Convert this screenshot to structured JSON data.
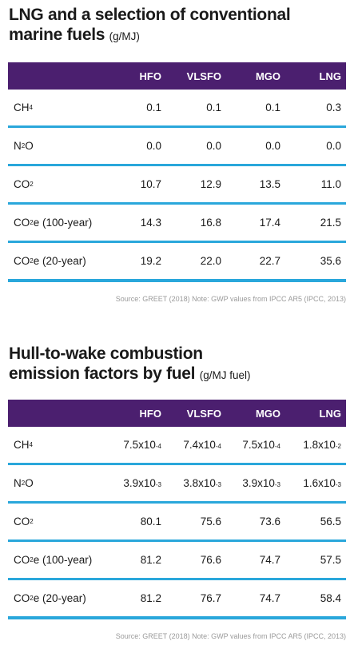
{
  "tables": [
    {
      "title": "LNG and a selection of conventional marine fuels",
      "unit": "(g/MJ)",
      "columns": [
        "HFO",
        "VLSFO",
        "MGO",
        "LNG"
      ],
      "rows": [
        {
          "label_main": "CH",
          "label_sub": "4",
          "label_tail": "",
          "values": [
            {
              "m": "0.1"
            },
            {
              "m": "0.1"
            },
            {
              "m": "0.1"
            },
            {
              "m": "0.3"
            }
          ]
        },
        {
          "label_main": "N",
          "label_sub": "2",
          "label_tail": "O",
          "values": [
            {
              "m": "0.0"
            },
            {
              "m": "0.0"
            },
            {
              "m": "0.0"
            },
            {
              "m": "0.0"
            }
          ]
        },
        {
          "label_main": "CO",
          "label_sub": "2",
          "label_tail": "",
          "values": [
            {
              "m": "10.7"
            },
            {
              "m": "12.9"
            },
            {
              "m": "13.5"
            },
            {
              "m": "11.0"
            }
          ]
        },
        {
          "label_main": "CO",
          "label_sub": "2",
          "label_tail": "e (100-year)",
          "values": [
            {
              "m": "14.3"
            },
            {
              "m": "16.8"
            },
            {
              "m": "17.4"
            },
            {
              "m": "21.5"
            }
          ]
        },
        {
          "label_main": "CO",
          "label_sub": "2",
          "label_tail": "e (20-year)",
          "values": [
            {
              "m": "19.2"
            },
            {
              "m": "22.0"
            },
            {
              "m": "22.7"
            },
            {
              "m": "35.6"
            }
          ]
        }
      ],
      "source": "Source: GREET (2018)    Note: GWP values from IPCC AR5 (IPCC, 2013)"
    },
    {
      "title_line1": "Hull-to-wake combustion",
      "title_line2": "emission factors by fuel",
      "unit": "(g/MJ fuel)",
      "columns": [
        "HFO",
        "VLSFO",
        "MGO",
        "LNG"
      ],
      "rows": [
        {
          "label_main": "CH",
          "label_sub": "4",
          "label_tail": "",
          "values": [
            {
              "m": "7.5x10",
              "e": "-4"
            },
            {
              "m": "7.4x10",
              "e": "-4"
            },
            {
              "m": "7.5x10",
              "e": "-4"
            },
            {
              "m": "1.8x10",
              "e": "-2"
            }
          ]
        },
        {
          "label_main": "N",
          "label_sub": "2",
          "label_tail": "O",
          "values": [
            {
              "m": "3.9x10",
              "e": "-3"
            },
            {
              "m": "3.8x10",
              "e": "-3"
            },
            {
              "m": "3.9x10",
              "e": "-3"
            },
            {
              "m": "1.6x10",
              "e": "-3"
            }
          ]
        },
        {
          "label_main": "CO",
          "label_sub": "2",
          "label_tail": "",
          "values": [
            {
              "m": "80.1"
            },
            {
              "m": "75.6"
            },
            {
              "m": "73.6"
            },
            {
              "m": "56.5"
            }
          ]
        },
        {
          "label_main": "CO",
          "label_sub": "2",
          "label_tail": "e (100-year)",
          "values": [
            {
              "m": "81.2"
            },
            {
              "m": "76.6"
            },
            {
              "m": "74.7"
            },
            {
              "m": "57.5"
            }
          ]
        },
        {
          "label_main": "CO",
          "label_sub": "2",
          "label_tail": "e (20-year)",
          "values": [
            {
              "m": "81.2"
            },
            {
              "m": "76.7"
            },
            {
              "m": "74.7"
            },
            {
              "m": "58.4"
            }
          ]
        }
      ],
      "source": "Source: GREET (2018)    Note: GWP values from IPCC AR5 (IPCC, 2013)"
    }
  ],
  "colors": {
    "header_bg": "#4b1f6f",
    "row_divider": "#2aa7db",
    "source_text": "#9a9a9a"
  }
}
